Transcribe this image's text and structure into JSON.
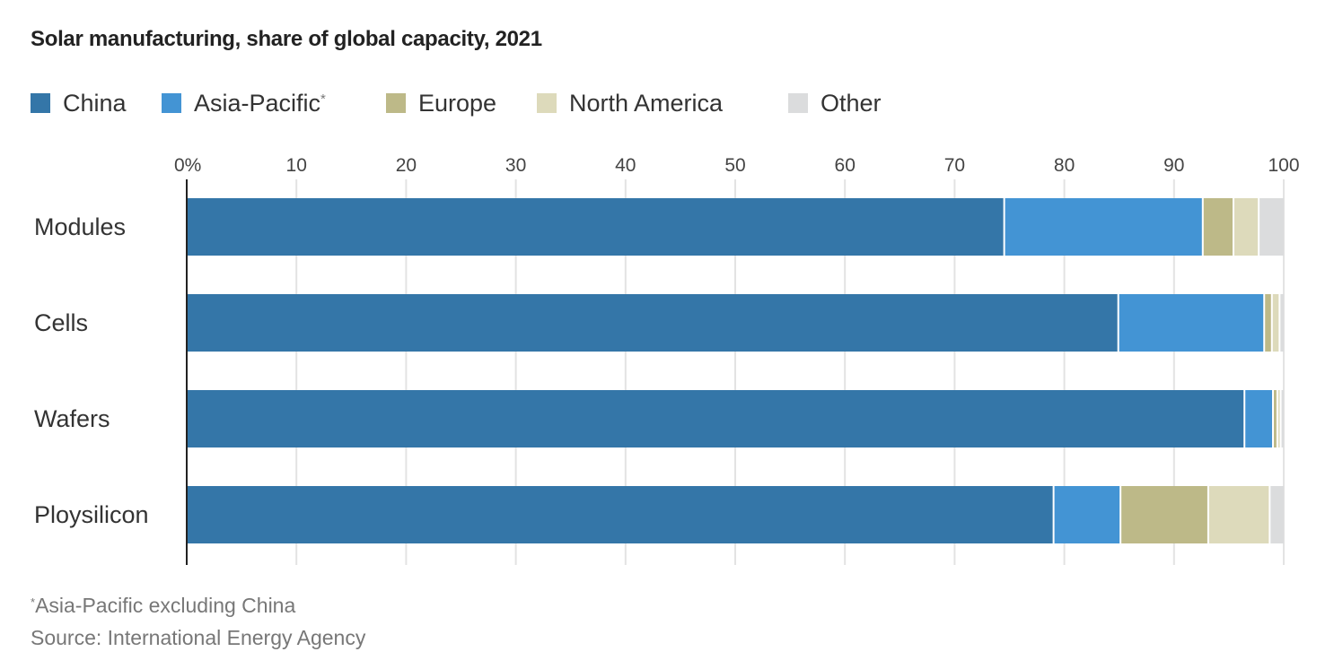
{
  "chart_data": {
    "type": "bar",
    "orientation": "horizontal",
    "stacked": true,
    "title": "Solar manufacturing, share of global capacity, 2021",
    "xlabel": "",
    "ylabel": "",
    "xlim": [
      0,
      100
    ],
    "x_ticks": [
      0,
      10,
      20,
      30,
      40,
      50,
      60,
      70,
      80,
      90,
      100
    ],
    "x_tick_labels": [
      "0%",
      "10",
      "20",
      "30",
      "40",
      "50",
      "60",
      "70",
      "80",
      "90",
      "100"
    ],
    "grid": true,
    "legend_position": "top-left",
    "categories": [
      "Modules",
      "Cells",
      "Wafers",
      "Ploysilicon"
    ],
    "series": [
      {
        "name": "China",
        "color": "#3476a8",
        "values": [
          74.6,
          85.0,
          96.5,
          79.1
        ]
      },
      {
        "name": "Asia-Pacific",
        "footnote_marker": "*",
        "color": "#4394d4",
        "values": [
          18.1,
          13.3,
          2.6,
          6.1
        ]
      },
      {
        "name": "Europe",
        "color": "#bdb988",
        "values": [
          2.8,
          0.7,
          0.4,
          8.0
        ]
      },
      {
        "name": "North America",
        "color": "#dddabb",
        "values": [
          2.3,
          0.7,
          0.3,
          5.6
        ]
      },
      {
        "name": "Other",
        "color": "#dbdcdd",
        "values": [
          2.2,
          0.3,
          0.2,
          1.2
        ]
      }
    ],
    "footnote": {
      "marker": "*",
      "text": "Asia-Pacific excluding China"
    },
    "source": "Source: International Energy Agency"
  }
}
